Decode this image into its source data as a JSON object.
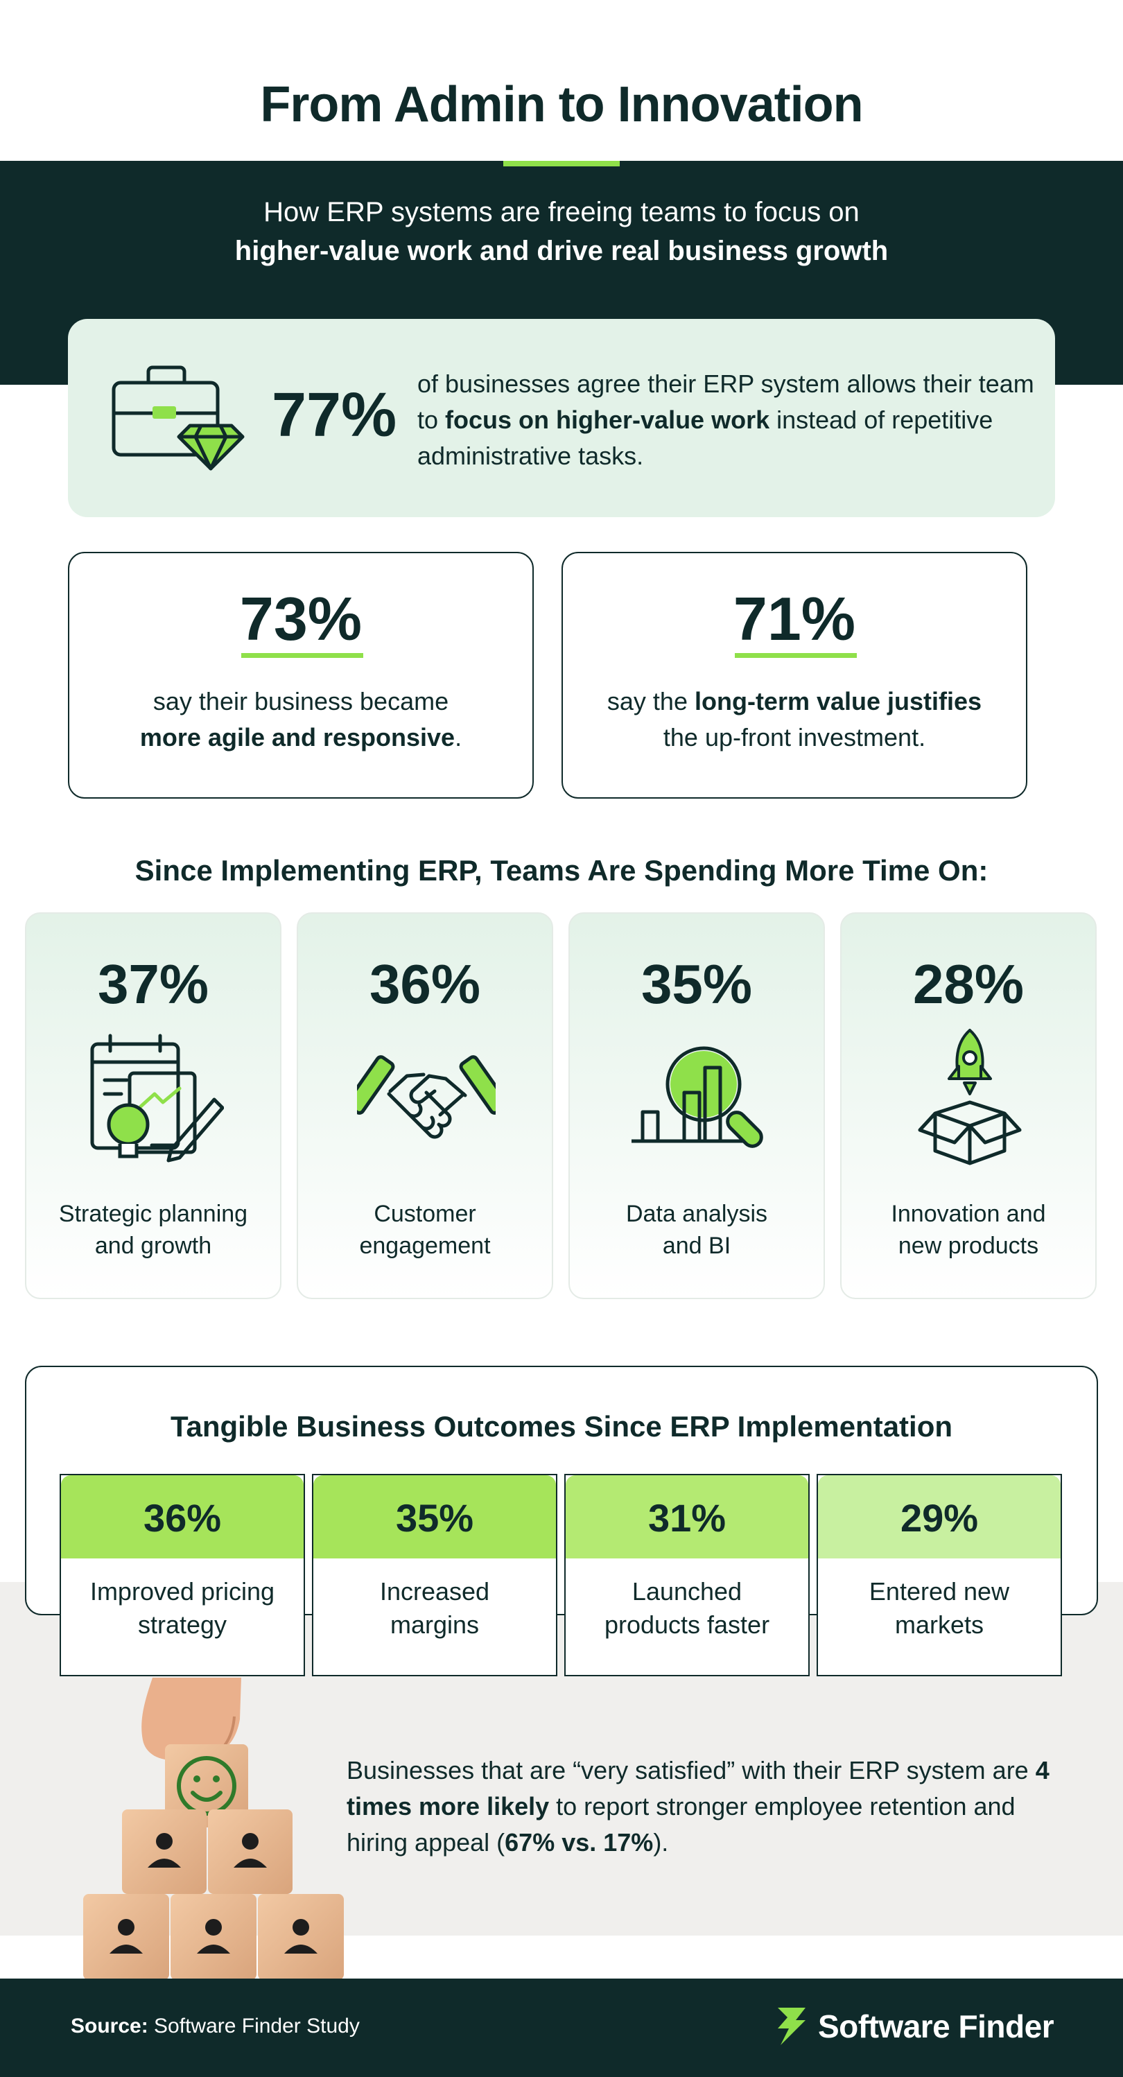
{
  "header": {
    "title": "From Admin to Innovation",
    "subtitle_line1": "How ERP systems are freeing teams to focus on",
    "subtitle_line2": "higher-value work and drive real business growth"
  },
  "hero": {
    "percent": "77%",
    "text_a": "of businesses agree their ERP system allows their team to ",
    "text_bold": "focus on higher-value work",
    "text_b": " instead of repetitive administrative tasks.",
    "icon": "briefcase-diamond-icon"
  },
  "stats": [
    {
      "percent": "73%",
      "text_a": "say their business became ",
      "text_bold": "more agile and responsive",
      "text_b": "."
    },
    {
      "percent": "71%",
      "text_a": "say the ",
      "text_bold": "long-term value justifies",
      "text_b": " the up-front investment."
    }
  ],
  "time_section": {
    "heading": "Since Implementing ERP, Teams Are Spending More Time On:",
    "items": [
      {
        "percent": "37%",
        "label_l1": "Strategic planning",
        "label_l2": "and growth",
        "icon": "planning-lightbulb-icon"
      },
      {
        "percent": "36%",
        "label_l1": "Customer",
        "label_l2": "engagement",
        "icon": "handshake-icon"
      },
      {
        "percent": "35%",
        "label_l1": "Data analysis",
        "label_l2": "and BI",
        "icon": "magnifier-chart-icon"
      },
      {
        "percent": "28%",
        "label_l1": "Innovation and",
        "label_l2": "new products",
        "icon": "rocket-box-icon"
      }
    ]
  },
  "outcomes": {
    "heading": "Tangible Business Outcomes Since ERP Implementation",
    "items": [
      {
        "percent": "36%",
        "label_l1": "Improved pricing",
        "label_l2": "strategy",
        "color": "#a6e45a"
      },
      {
        "percent": "35%",
        "label_l1": "Increased",
        "label_l2": "margins",
        "color": "#a6e45a"
      },
      {
        "percent": "31%",
        "label_l1": "Launched",
        "label_l2": "products faster",
        "color": "#b4ea72"
      },
      {
        "percent": "29%",
        "label_l1": "Entered new",
        "label_l2": "markets",
        "color": "#c8f0a0"
      }
    ]
  },
  "retention": {
    "text_a": "Businesses that are “very satisfied” with their ERP system are ",
    "text_bold1": "4 times more likely",
    "text_b": " to report stronger employee retention and hiring appeal (",
    "text_bold2": "67% vs. 17%",
    "text_c": ")."
  },
  "footer": {
    "source_label": "Source:",
    "source_text": " Software Finder Study",
    "brand": "Software Finder"
  },
  "colors": {
    "dark": "#0f2a2a",
    "accent": "#8fe04a",
    "mint": "#e3f2e8"
  }
}
